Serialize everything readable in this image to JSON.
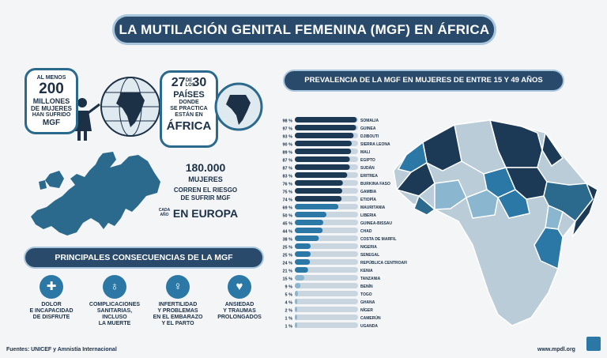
{
  "title": "LA MUTILACIÓN GENITAL FEMENINA (MGF) EN ÁFRICA",
  "bubble_women": {
    "top": "AL MENOS",
    "number": "200",
    "line2": "MILLONES",
    "line3": "DE MUJERES",
    "line4": "HAN SUFRIDO",
    "line5": "MGF"
  },
  "bubble_countries": {
    "from": "27",
    "of": "DE LOS",
    "to": "30",
    "word": "PAÍSES",
    "line1": "DONDE",
    "line2": "SE PRACTICA",
    "line3": "ESTÁN EN",
    "region": "ÁFRICA"
  },
  "europe_stat": {
    "number": "180.000",
    "line1": "MUJERES",
    "line2": "CORREN EL RIESGO",
    "line3": "DE SUFRIR MGF",
    "cada": "CADA",
    "anio": "AÑO",
    "region": "EN EUROPA"
  },
  "consequences": {
    "heading": "PRINCIPALES CONSECUENCIAS DE LA MGF",
    "items": [
      {
        "icon": "medicine-icon",
        "lines": [
          "DOLOR",
          "E INCAPACIDAD",
          "DE DISFRUTE"
        ]
      },
      {
        "icon": "stethoscope-icon",
        "lines": [
          "COMPLICACIONES",
          "SANITARIAS,",
          "INCLUSO",
          "LA MUERTE"
        ]
      },
      {
        "icon": "pregnancy-icon",
        "lines": [
          "INFERTILIDAD",
          "Y PROBLEMAS",
          "EN EL EMBARAZO",
          "Y EL PARTO"
        ]
      },
      {
        "icon": "heart-hands-icon",
        "lines": [
          "ANSIEDAD",
          "Y TRAUMAS",
          "PROLONGADOS"
        ]
      }
    ]
  },
  "footer": {
    "sources": "Fuentes: UNICEF y Amnistía Internacional",
    "url": "www.mpdl.org"
  },
  "colors": {
    "navy": "#294a6b",
    "dark_bar": "#1c3a55",
    "mid_bar": "#2b78a6",
    "light_bar": "#8ab6cf",
    "track": "#c9d6df"
  },
  "chart_data": {
    "type": "bar",
    "orientation": "horizontal",
    "title": "PREVALENCIA DE LA MGF EN MUJERES DE ENTRE 15 Y 49 AÑOS",
    "xlim": [
      0,
      100
    ],
    "categories": [
      "SOMALIA",
      "GUINEA",
      "DJIBOUTI",
      "SIERRA LEONA",
      "MALI",
      "EGIPTO",
      "SUDÁN",
      "ERITREA",
      "BURKINA FASO",
      "GAMBIA",
      "ETIOPÍA",
      "MAURITANIA",
      "LIBERIA",
      "GUINEA-BISSAU",
      "CHAD",
      "COSTA DE MARFIL",
      "NIGERIA",
      "SENEGAL",
      "REPÚBLICA CENTROAFRICANA",
      "KENIA",
      "TANZANIA",
      "BENÍN",
      "TOGO",
      "GHANA",
      "NÍGER",
      "CAMERÚN",
      "UGANDA"
    ],
    "values": [
      98,
      97,
      93,
      90,
      89,
      87,
      87,
      83,
      76,
      75,
      74,
      69,
      50,
      45,
      44,
      38,
      25,
      25,
      24,
      21,
      15,
      9,
      5,
      4,
      2,
      1,
      1
    ],
    "labels": [
      "98 %",
      "97 %",
      "93 %",
      "90 %",
      "89 %",
      "87 %",
      "87 %",
      "83 %",
      "76 %",
      "75 %",
      "74 %",
      "69 %",
      "50 %",
      "45 %",
      "44 %",
      "38 %",
      "25 %",
      "25 %",
      "24 %",
      "21 %",
      "15 %",
      "9 %",
      "5 %",
      "4 %",
      "2 %",
      "1 %",
      "1 %"
    ]
  }
}
